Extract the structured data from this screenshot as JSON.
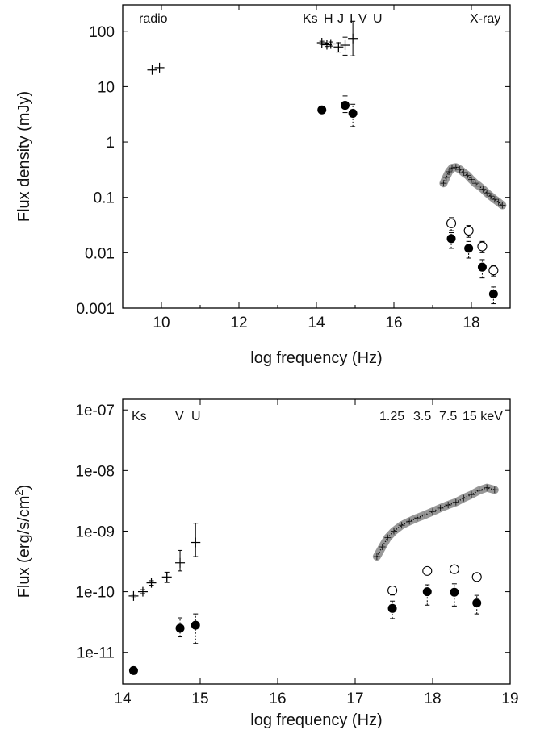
{
  "chart_data": [
    {
      "type": "scatter",
      "xlabel": "log frequency (Hz)",
      "ylabel": "Flux density (mJy)",
      "xlim": [
        9,
        19
      ],
      "ylim": [
        0.001,
        300
      ],
      "yscale": "log",
      "x_ticks": [
        "10",
        "12",
        "14",
        "16",
        "18"
      ],
      "y_ticks": [
        "0.001",
        "0.01",
        "0.1",
        "1",
        "10",
        "100"
      ],
      "annotations": [
        "radio",
        "Ks",
        "H",
        "J",
        "I",
        "V",
        "U",
        "X-ray"
      ],
      "series": [
        {
          "marker": "cross",
          "points": [
            {
              "x": 9.76,
              "y": 20,
              "lo": 20,
              "hi": 20
            },
            {
              "x": 9.95,
              "y": 22,
              "lo": 22,
              "hi": 22
            },
            {
              "x": 14.14,
              "y": 62,
              "lo": 58,
              "hi": 66
            },
            {
              "x": 14.27,
              "y": 57,
              "lo": 53,
              "hi": 61
            },
            {
              "x": 14.37,
              "y": 59,
              "lo": 54,
              "hi": 64
            },
            {
              "x": 14.57,
              "y": 52,
              "lo": 42,
              "hi": 62
            },
            {
              "x": 14.74,
              "y": 56,
              "lo": 37,
              "hi": 78
            },
            {
              "x": 14.94,
              "y": 74,
              "lo": 36,
              "hi": 152
            }
          ]
        },
        {
          "marker": "filled-circle",
          "points": [
            {
              "x": 14.14,
              "y": 3.8,
              "lo": 3.8,
              "hi": 3.8
            },
            {
              "x": 14.74,
              "y": 4.6,
              "lo": 3.4,
              "hi": 6.8
            },
            {
              "x": 14.94,
              "y": 3.3,
              "lo": 1.9,
              "hi": 4.8
            },
            {
              "x": 17.48,
              "y": 0.018,
              "lo": 0.012,
              "hi": 0.023
            },
            {
              "x": 17.93,
              "y": 0.012,
              "lo": 0.008,
              "hi": 0.016
            },
            {
              "x": 18.28,
              "y": 0.0055,
              "lo": 0.0035,
              "hi": 0.0075
            },
            {
              "x": 18.57,
              "y": 0.0018,
              "lo": 0.0012,
              "hi": 0.0024
            }
          ]
        },
        {
          "marker": "open-circle",
          "points": [
            {
              "x": 17.48,
              "y": 0.034,
              "lo": 0.025,
              "hi": 0.043
            },
            {
              "x": 17.93,
              "y": 0.025,
              "lo": 0.019,
              "hi": 0.031
            },
            {
              "x": 18.28,
              "y": 0.013,
              "lo": 0.01,
              "hi": 0.016
            },
            {
              "x": 18.57,
              "y": 0.0048,
              "lo": 0.0038,
              "hi": 0.0058
            }
          ]
        },
        {
          "marker": "dense-crosses",
          "points": [
            {
              "x": 17.28,
              "y": 0.18
            },
            {
              "x": 17.35,
              "y": 0.23
            },
            {
              "x": 17.42,
              "y": 0.29
            },
            {
              "x": 17.5,
              "y": 0.34
            },
            {
              "x": 17.6,
              "y": 0.35
            },
            {
              "x": 17.7,
              "y": 0.32
            },
            {
              "x": 17.8,
              "y": 0.28
            },
            {
              "x": 17.9,
              "y": 0.25
            },
            {
              "x": 18.0,
              "y": 0.21
            },
            {
              "x": 18.1,
              "y": 0.18
            },
            {
              "x": 18.2,
              "y": 0.16
            },
            {
              "x": 18.3,
              "y": 0.14
            },
            {
              "x": 18.4,
              "y": 0.12
            },
            {
              "x": 18.5,
              "y": 0.105
            },
            {
              "x": 18.6,
              "y": 0.092
            },
            {
              "x": 18.7,
              "y": 0.082
            },
            {
              "x": 18.8,
              "y": 0.072
            }
          ]
        }
      ]
    },
    {
      "type": "scatter",
      "xlabel": "log frequency (Hz)",
      "ylabel": "Flux (erg/s/cm",
      "ylabel_sup": "2",
      "ylabel_end": ")",
      "xlim": [
        14,
        19
      ],
      "ylim": [
        3e-12,
        1.5e-07
      ],
      "yscale": "log",
      "x_ticks": [
        "14",
        "15",
        "16",
        "17",
        "18",
        "19"
      ],
      "y_ticks": [
        "1e-11",
        "1e-10",
        "1e-09",
        "1e-08",
        "1e-07"
      ],
      "annotations": [
        "Ks",
        "V",
        "U",
        "1.25",
        "3.5",
        "7.5",
        "15 keV"
      ],
      "series": [
        {
          "marker": "cross",
          "points": [
            {
              "x": 14.14,
              "y": 8.5e-11,
              "lo": 7.9e-11,
              "hi": 9.1e-11
            },
            {
              "x": 14.26,
              "y": 1e-10,
              "lo": 9.3e-11,
              "hi": 1.08e-10
            },
            {
              "x": 14.37,
              "y": 1.4e-10,
              "lo": 1.28e-10,
              "hi": 1.52e-10
            },
            {
              "x": 14.57,
              "y": 1.75e-10,
              "lo": 1.42e-10,
              "hi": 2.1e-10
            },
            {
              "x": 14.74,
              "y": 3e-10,
              "lo": 2.2e-10,
              "hi": 4.8e-10
            },
            {
              "x": 14.94,
              "y": 6.5e-10,
              "lo": 3.8e-10,
              "hi": 1.35e-09
            }
          ]
        },
        {
          "marker": "filled-circle",
          "points": [
            {
              "x": 14.14,
              "y": 5e-12,
              "lo": 5e-12,
              "hi": 5e-12
            },
            {
              "x": 14.74,
              "y": 2.5e-11,
              "lo": 1.8e-11,
              "hi": 3.7e-11
            },
            {
              "x": 14.94,
              "y": 2.8e-11,
              "lo": 1.4e-11,
              "hi": 4.3e-11
            },
            {
              "x": 17.48,
              "y": 5.3e-11,
              "lo": 3.6e-11,
              "hi": 7e-11
            },
            {
              "x": 17.93,
              "y": 1e-10,
              "lo": 6e-11,
              "hi": 1.3e-10
            },
            {
              "x": 18.28,
              "y": 9.8e-11,
              "lo": 5.8e-11,
              "hi": 1.35e-10
            },
            {
              "x": 18.57,
              "y": 6.5e-11,
              "lo": 4.3e-11,
              "hi": 8.7e-11
            }
          ]
        },
        {
          "marker": "open-circle",
          "points": [
            {
              "x": 17.48,
              "y": 1.05e-10,
              "lo": 8.8e-11,
              "hi": 1.22e-10
            },
            {
              "x": 17.93,
              "y": 2.2e-10,
              "lo": 1.95e-10,
              "hi": 2.45e-10
            },
            {
              "x": 18.28,
              "y": 2.35e-10,
              "lo": 2.08e-10,
              "hi": 2.62e-10
            },
            {
              "x": 18.57,
              "y": 1.75e-10,
              "lo": 1.52e-10,
              "hi": 1.98e-10
            }
          ]
        },
        {
          "marker": "dense-crosses",
          "points": [
            {
              "x": 17.28,
              "y": 3.8e-10
            },
            {
              "x": 17.35,
              "y": 5.5e-10
            },
            {
              "x": 17.42,
              "y": 7.8e-10
            },
            {
              "x": 17.5,
              "y": 1e-09
            },
            {
              "x": 17.6,
              "y": 1.25e-09
            },
            {
              "x": 17.7,
              "y": 1.45e-09
            },
            {
              "x": 17.8,
              "y": 1.65e-09
            },
            {
              "x": 17.9,
              "y": 1.85e-09
            },
            {
              "x": 18.0,
              "y": 2.1e-09
            },
            {
              "x": 18.1,
              "y": 2.4e-09
            },
            {
              "x": 18.2,
              "y": 2.7e-09
            },
            {
              "x": 18.3,
              "y": 3e-09
            },
            {
              "x": 18.4,
              "y": 3.5e-09
            },
            {
              "x": 18.5,
              "y": 4e-09
            },
            {
              "x": 18.6,
              "y": 4.7e-09
            },
            {
              "x": 18.7,
              "y": 5.2e-09
            },
            {
              "x": 18.8,
              "y": 4.8e-09
            }
          ]
        }
      ]
    }
  ]
}
